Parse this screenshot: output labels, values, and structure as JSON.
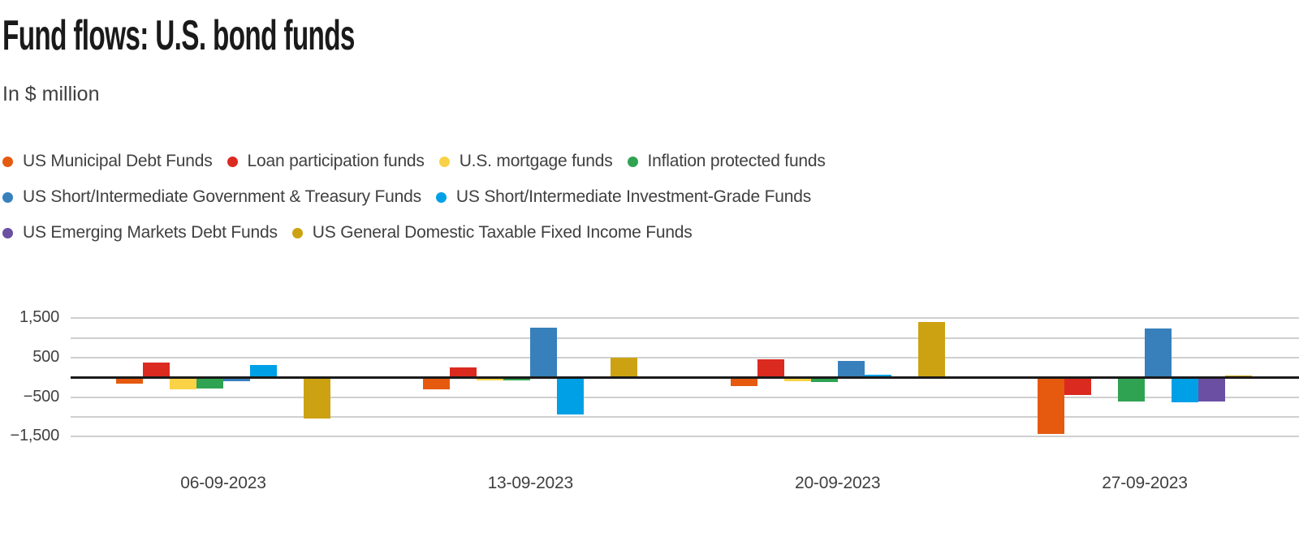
{
  "chart_data": {
    "type": "bar",
    "title": "Fund flows: U.S. bond funds",
    "subtitle": "In $ million",
    "xlabel": "",
    "ylabel": "",
    "ylim": [
      -1500,
      1500
    ],
    "grid": "horizontal",
    "legend_position": "top-left",
    "categories": [
      "06-09-2023",
      "13-09-2023",
      "20-09-2023",
      "27-09-2023"
    ],
    "gridline_values": [
      1500,
      1000,
      500,
      -500,
      -1000,
      -1500
    ],
    "zero_line_value": 0,
    "yticks": [
      {
        "value": 1500,
        "label": "1,500"
      },
      {
        "value": 500,
        "label": "500"
      },
      {
        "value": -500,
        "label": "−500"
      },
      {
        "value": -1500,
        "label": "−1,500"
      }
    ],
    "series": [
      {
        "name": "US Municipal Debt Funds",
        "color": "#E55A0F",
        "legend_row": 0,
        "values": [
          -160,
          -300,
          -230,
          -1440
        ]
      },
      {
        "name": "Loan participation funds",
        "color": "#DB2A20",
        "legend_row": 0,
        "values": [
          370,
          260,
          460,
          -450
        ]
      },
      {
        "name": "U.S. mortgage funds",
        "color": "#F9D245",
        "legend_row": 0,
        "values": [
          -300,
          -80,
          -90,
          -30
        ]
      },
      {
        "name": "Inflation protected funds",
        "color": "#30A352",
        "legend_row": 0,
        "values": [
          -280,
          -70,
          -110,
          -620
        ]
      },
      {
        "name": "US Short/Intermediate Government & Treasury Funds",
        "color": "#3780BC",
        "legend_row": 1,
        "values": [
          -90,
          1250,
          420,
          1230
        ]
      },
      {
        "name": "US Short/Intermediate Investment-Grade Funds",
        "color": "#00A0E6",
        "legend_row": 1,
        "values": [
          320,
          -940,
          65,
          -630
        ]
      },
      {
        "name": "US Emerging Markets Debt Funds",
        "color": "#6A4FA3",
        "legend_row": 2,
        "values": [
          0,
          0,
          0,
          -620
        ]
      },
      {
        "name": "US General Domestic Taxable Fixed Income Funds",
        "color": "#CCA212",
        "legend_row": 2,
        "values": [
          -1050,
          505,
          1400,
          40
        ]
      }
    ],
    "colors": {
      "title_text": "#1a1a1a",
      "body_text": "#404040",
      "gridline": "#cfcfcf",
      "zero_line": "#1a1a1a",
      "background": "#ffffff"
    }
  }
}
